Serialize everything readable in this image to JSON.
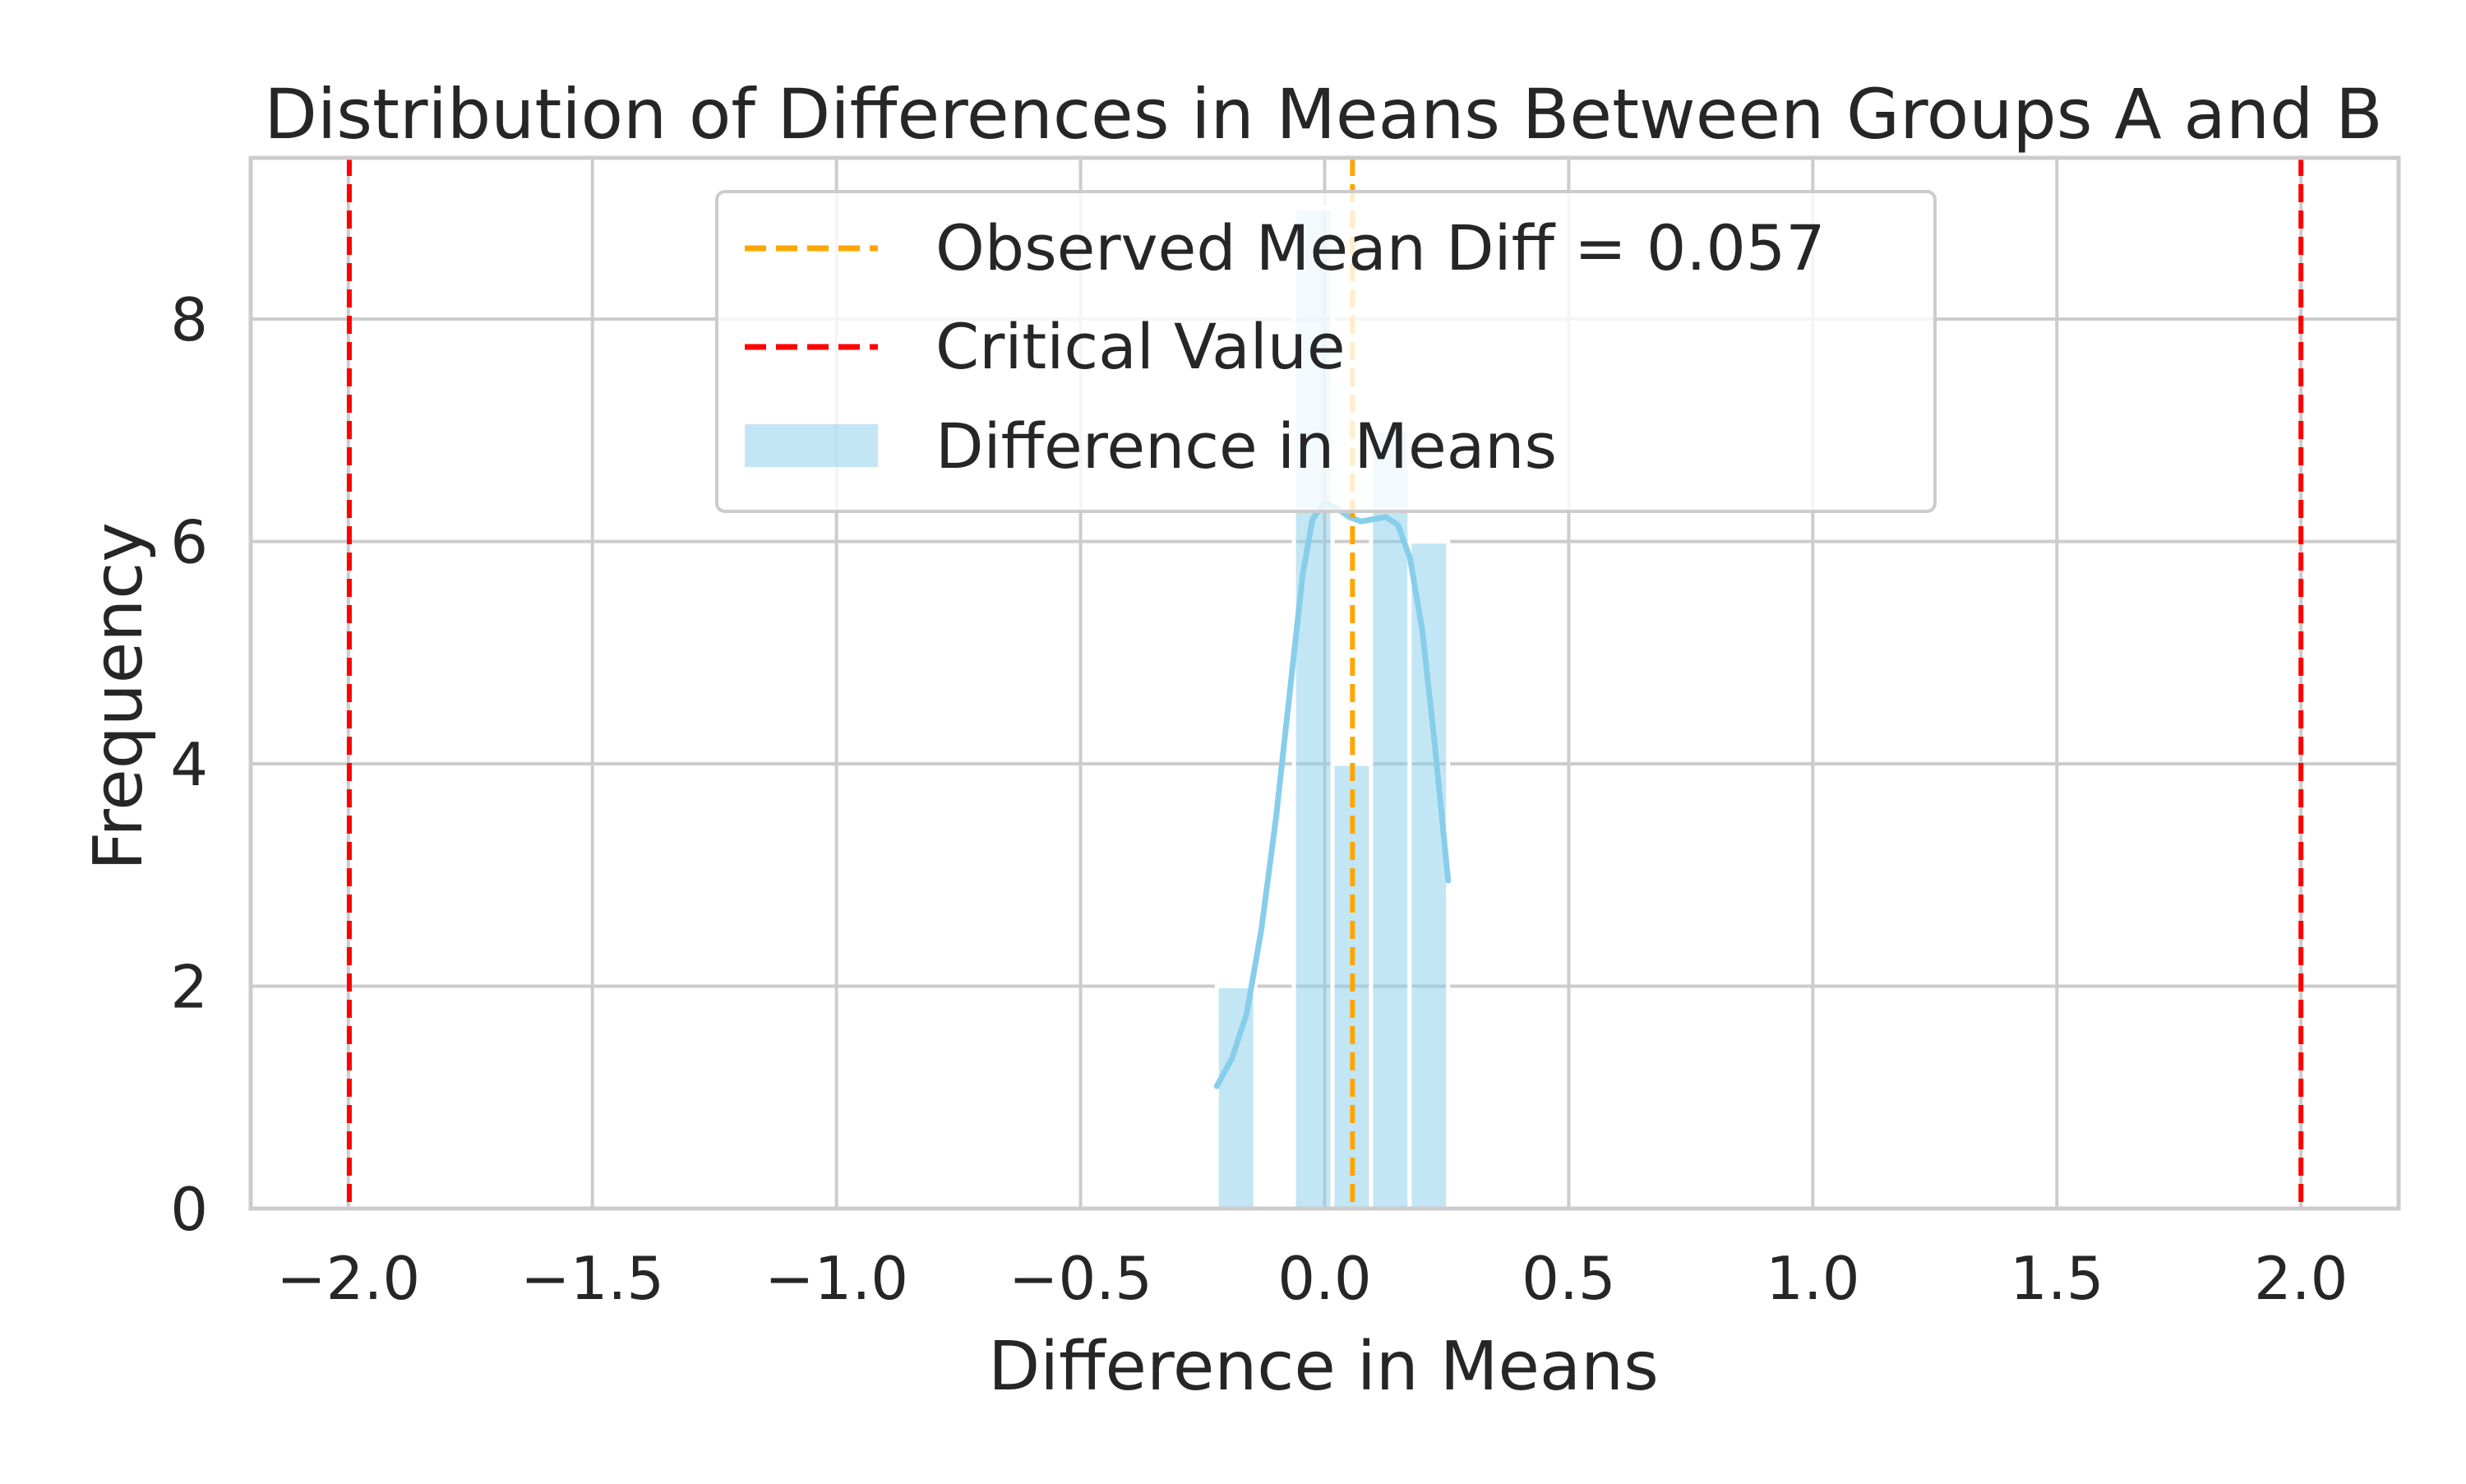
{
  "chart_data": {
    "type": "bar",
    "title": "Distribution of Differences in Means Between Groups A and B",
    "xlabel": "Difference in Means",
    "ylabel": "Frequency",
    "xlim": [
      -2.2,
      2.2
    ],
    "ylim": [
      0,
      9.45
    ],
    "grid": true,
    "xticks": [
      {
        "value": -2.0,
        "label": "−2.0"
      },
      {
        "value": -1.5,
        "label": "−1.5"
      },
      {
        "value": -1.0,
        "label": "−1.0"
      },
      {
        "value": -0.5,
        "label": "−0.5"
      },
      {
        "value": 0.0,
        "label": "0.0"
      },
      {
        "value": 0.5,
        "label": "0.5"
      },
      {
        "value": 1.0,
        "label": "1.0"
      },
      {
        "value": 1.5,
        "label": "1.5"
      },
      {
        "value": 2.0,
        "label": "2.0"
      }
    ],
    "yticks": [
      {
        "value": 0,
        "label": "0"
      },
      {
        "value": 2,
        "label": "2"
      },
      {
        "value": 4,
        "label": "4"
      },
      {
        "value": 6,
        "label": "6"
      },
      {
        "value": 8,
        "label": "8"
      }
    ],
    "histogram": {
      "name": "Difference in Means",
      "color": "#87CEEB",
      "bins": [
        {
          "x0": -0.221,
          "x1": -0.142,
          "count": 2
        },
        {
          "x0": -0.142,
          "x1": -0.063,
          "count": 0
        },
        {
          "x0": -0.063,
          "x1": 0.016,
          "count": 9
        },
        {
          "x0": 0.016,
          "x1": 0.095,
          "count": 4
        },
        {
          "x0": 0.095,
          "x1": 0.174,
          "count": 7
        },
        {
          "x0": 0.174,
          "x1": 0.253,
          "count": 6
        }
      ]
    },
    "kde": {
      "color": "#87CEEB",
      "points": [
        [
          -0.221,
          1.1
        ],
        [
          -0.19,
          1.35
        ],
        [
          -0.16,
          1.75
        ],
        [
          -0.13,
          2.5
        ],
        [
          -0.1,
          3.5
        ],
        [
          -0.07,
          4.7
        ],
        [
          -0.045,
          5.7
        ],
        [
          -0.025,
          6.2
        ],
        [
          0.0,
          6.35
        ],
        [
          0.025,
          6.3
        ],
        [
          0.05,
          6.22
        ],
        [
          0.075,
          6.18
        ],
        [
          0.1,
          6.2
        ],
        [
          0.125,
          6.22
        ],
        [
          0.15,
          6.15
        ],
        [
          0.175,
          5.85
        ],
        [
          0.2,
          5.2
        ],
        [
          0.225,
          4.2
        ],
        [
          0.253,
          2.95
        ]
      ]
    },
    "lines": [
      {
        "name": "Observed Mean Diff = 0.057",
        "x": 0.057,
        "color": "#FFA500",
        "style": "dashed"
      },
      {
        "name": "Critical Value",
        "x": -1.998,
        "color": "#FF0000",
        "style": "dashed"
      },
      {
        "name": "",
        "x": 2.0,
        "color": "#FF0000",
        "style": "dashed"
      }
    ],
    "legend": {
      "position": "upper center",
      "entries": [
        {
          "label": "Observed Mean Diff = 0.057",
          "type": "line",
          "color": "#FFA500"
        },
        {
          "label": "Critical Value",
          "type": "line",
          "color": "#FF0000"
        },
        {
          "label": "Difference in Means",
          "type": "patch",
          "color": "#87CEEB"
        }
      ]
    }
  }
}
